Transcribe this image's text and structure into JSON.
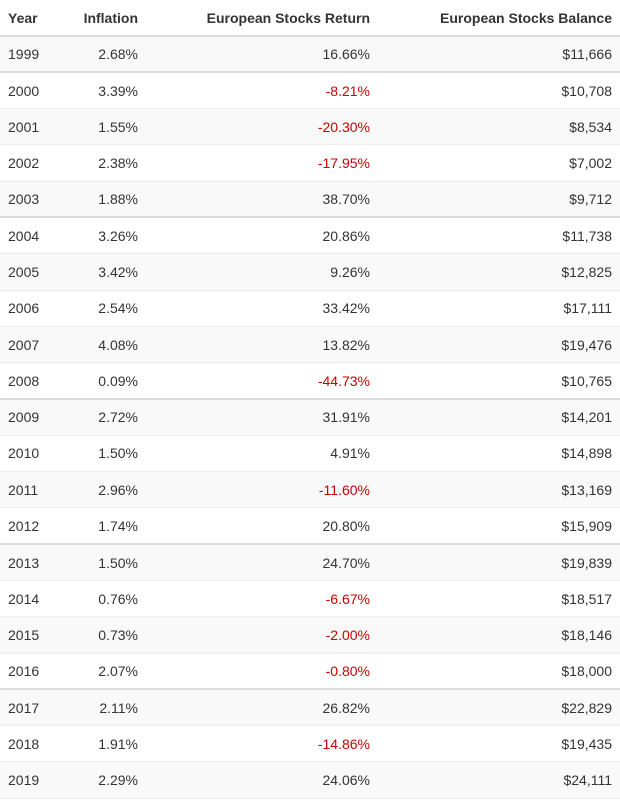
{
  "table": {
    "headers": {
      "year": "Year",
      "inflation": "Inflation",
      "return": "European Stocks Return",
      "balance": "European Stocks Balance"
    },
    "negative_color": "#cc0000",
    "rows": [
      {
        "year": "1999",
        "inflation": "2.68%",
        "return": "16.66%",
        "balance": "$11,666"
      },
      {
        "year": "2000",
        "inflation": "3.39%",
        "return": "-8.21%",
        "balance": "$10,708"
      },
      {
        "year": "2001",
        "inflation": "1.55%",
        "return": "-20.30%",
        "balance": "$8,534"
      },
      {
        "year": "2002",
        "inflation": "2.38%",
        "return": "-17.95%",
        "balance": "$7,002"
      },
      {
        "year": "2003",
        "inflation": "1.88%",
        "return": "38.70%",
        "balance": "$9,712"
      },
      {
        "year": "2004",
        "inflation": "3.26%",
        "return": "20.86%",
        "balance": "$11,738"
      },
      {
        "year": "2005",
        "inflation": "3.42%",
        "return": "9.26%",
        "balance": "$12,825"
      },
      {
        "year": "2006",
        "inflation": "2.54%",
        "return": "33.42%",
        "balance": "$17,111"
      },
      {
        "year": "2007",
        "inflation": "4.08%",
        "return": "13.82%",
        "balance": "$19,476"
      },
      {
        "year": "2008",
        "inflation": "0.09%",
        "return": "-44.73%",
        "balance": "$10,765"
      },
      {
        "year": "2009",
        "inflation": "2.72%",
        "return": "31.91%",
        "balance": "$14,201"
      },
      {
        "year": "2010",
        "inflation": "1.50%",
        "return": "4.91%",
        "balance": "$14,898"
      },
      {
        "year": "2011",
        "inflation": "2.96%",
        "return": "-11.60%",
        "balance": "$13,169"
      },
      {
        "year": "2012",
        "inflation": "1.74%",
        "return": "20.80%",
        "balance": "$15,909"
      },
      {
        "year": "2013",
        "inflation": "1.50%",
        "return": "24.70%",
        "balance": "$19,839"
      },
      {
        "year": "2014",
        "inflation": "0.76%",
        "return": "-6.67%",
        "balance": "$18,517"
      },
      {
        "year": "2015",
        "inflation": "0.73%",
        "return": "-2.00%",
        "balance": "$18,146"
      },
      {
        "year": "2016",
        "inflation": "2.07%",
        "return": "-0.80%",
        "balance": "$18,000"
      },
      {
        "year": "2017",
        "inflation": "2.11%",
        "return": "26.82%",
        "balance": "$22,829"
      },
      {
        "year": "2018",
        "inflation": "1.91%",
        "return": "-14.86%",
        "balance": "$19,435"
      },
      {
        "year": "2019",
        "inflation": "2.29%",
        "return": "24.06%",
        "balance": "$24,111"
      }
    ]
  }
}
